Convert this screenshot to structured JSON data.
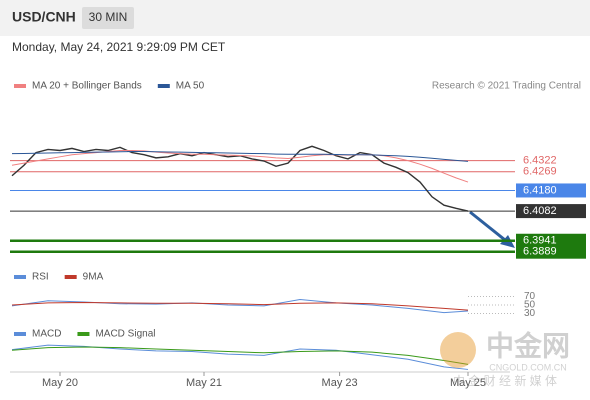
{
  "header": {
    "symbol": "USD/CNH",
    "interval": "30 MIN",
    "datetime": "Monday, May 24, 2021 9:29:09 PM CET"
  },
  "credit": "Research © 2021 Trading Central",
  "watermark": {
    "brand": "中金网",
    "site": "CNGOLD.COM.CN",
    "tagline": "中 金 财 经 新 媒 体"
  },
  "chart_data": [
    {
      "type": "line",
      "x": [
        0,
        1,
        2,
        3,
        4,
        5,
        6,
        7,
        8,
        9,
        10,
        11,
        12,
        13,
        14,
        15,
        16,
        17,
        18,
        19,
        20,
        21,
        22,
        23,
        24,
        25,
        26,
        27,
        28,
        29,
        30,
        31,
        32,
        33,
        34,
        35,
        36,
        37,
        38
      ],
      "xlim": [
        0,
        38
      ],
      "ylim": [
        6.384,
        6.461
      ],
      "series": [
        {
          "color": "#333333",
          "values": [
            6.425,
            6.43,
            6.436,
            6.4375,
            6.437,
            6.438,
            6.4365,
            6.4375,
            6.437,
            6.4385,
            6.436,
            6.435,
            6.4335,
            6.434,
            6.4355,
            6.4345,
            6.436,
            6.435,
            6.434,
            6.4345,
            6.433,
            6.432,
            6.4295,
            6.431,
            6.437,
            6.439,
            6.437,
            6.4345,
            6.433,
            6.436,
            6.435,
            6.431,
            6.429,
            6.4265,
            6.422,
            6.415,
            6.411,
            6.4095,
            6.4082
          ]
        },
        {
          "name": "MA 20 + Bollinger Bands",
          "color": "#f08080",
          "values": [
            6.43,
            6.431,
            6.432,
            6.433,
            6.434,
            6.435,
            6.4355,
            6.436,
            6.4365,
            6.437,
            6.437,
            6.4368,
            6.4362,
            6.4358,
            6.4355,
            6.4352,
            6.4352,
            6.435,
            6.4348,
            6.4346,
            6.4344,
            6.434,
            6.4335,
            6.4332,
            6.4338,
            6.4345,
            6.435,
            6.435,
            6.4348,
            6.435,
            6.435,
            6.4345,
            6.4335,
            6.4322,
            6.4305,
            6.4285,
            6.4262,
            6.424,
            6.422
          ]
        },
        {
          "name": "MA 50",
          "color": "#2b5797",
          "values": [
            6.4355,
            6.4356,
            6.4357,
            6.4358,
            6.4359,
            6.436,
            6.4361,
            6.4362,
            6.4363,
            6.4364,
            6.4365,
            6.4365,
            6.4364,
            6.4363,
            6.4362,
            6.4361,
            6.436,
            6.4359,
            6.4358,
            6.4357,
            6.4356,
            6.4355,
            6.4353,
            6.4352,
            6.4352,
            6.4352,
            6.4352,
            6.4351,
            6.435,
            6.435,
            6.4349,
            6.4347,
            6.4345,
            6.4342,
            6.4338,
            6.4333,
            6.4328,
            6.4323,
            6.4318
          ]
        }
      ],
      "levels": [
        {
          "value": 6.4322,
          "color": "#e06666",
          "label_box": false
        },
        {
          "value": 6.4269,
          "color": "#e06666",
          "label_box": false
        },
        {
          "value": 6.418,
          "label": "6.4180",
          "color": "#4a86e8",
          "label_box": true
        },
        {
          "value": 6.4082,
          "color": "#333333",
          "label_box": true
        },
        {
          "value": 6.3941,
          "color": "#1e7a0e",
          "label_box": true
        },
        {
          "value": 6.3889,
          "color": "#1e7a0e",
          "label_box": true
        }
      ]
    },
    {
      "type": "line",
      "x": [
        0,
        3,
        6,
        9,
        12,
        15,
        18,
        21,
        24,
        27,
        30,
        33,
        36,
        38
      ],
      "xlim": [
        0,
        38
      ],
      "ylim": [
        10,
        90
      ],
      "yticks": [
        70,
        50,
        30
      ],
      "series": [
        {
          "name": "RSI",
          "color": "#5b8dd9",
          "values": [
            48,
            60,
            57,
            53,
            52,
            55,
            50,
            48,
            63,
            55,
            50,
            42,
            32,
            36
          ]
        },
        {
          "name": "9MA",
          "color": "#c0392b",
          "values": [
            50,
            55,
            56,
            55,
            54,
            54,
            53,
            51,
            54,
            55,
            53,
            48,
            42,
            38
          ]
        }
      ]
    },
    {
      "type": "line",
      "x": [
        0,
        3,
        6,
        9,
        12,
        15,
        18,
        21,
        24,
        27,
        30,
        33,
        36,
        38
      ],
      "xlim": [
        0,
        38
      ],
      "ylim": [
        -0.003,
        0.002
      ],
      "xticks": [
        {
          "value": 4,
          "label": "May 20"
        },
        {
          "value": 16,
          "label": "May 21"
        },
        {
          "value": 27.3,
          "label": "May 23"
        },
        {
          "value": 38,
          "label": "May 25"
        }
      ],
      "series": [
        {
          "name": "MACD",
          "color": "#5b8dd9",
          "values": [
            0.0005,
            0.0012,
            0.001,
            0.0006,
            0.0003,
            0.0002,
            -0.0002,
            -0.0004,
            0.0006,
            0.0004,
            -0.0003,
            -0.001,
            -0.0022,
            -0.0026
          ]
        },
        {
          "name": "MACD Signal",
          "color": "#3a9a1a",
          "values": [
            0.0004,
            0.0008,
            0.0009,
            0.0008,
            0.0006,
            0.0004,
            0.0002,
            0.0,
            0.0002,
            0.0003,
            0.0001,
            -0.0004,
            -0.0012,
            -0.0018
          ]
        }
      ]
    }
  ]
}
